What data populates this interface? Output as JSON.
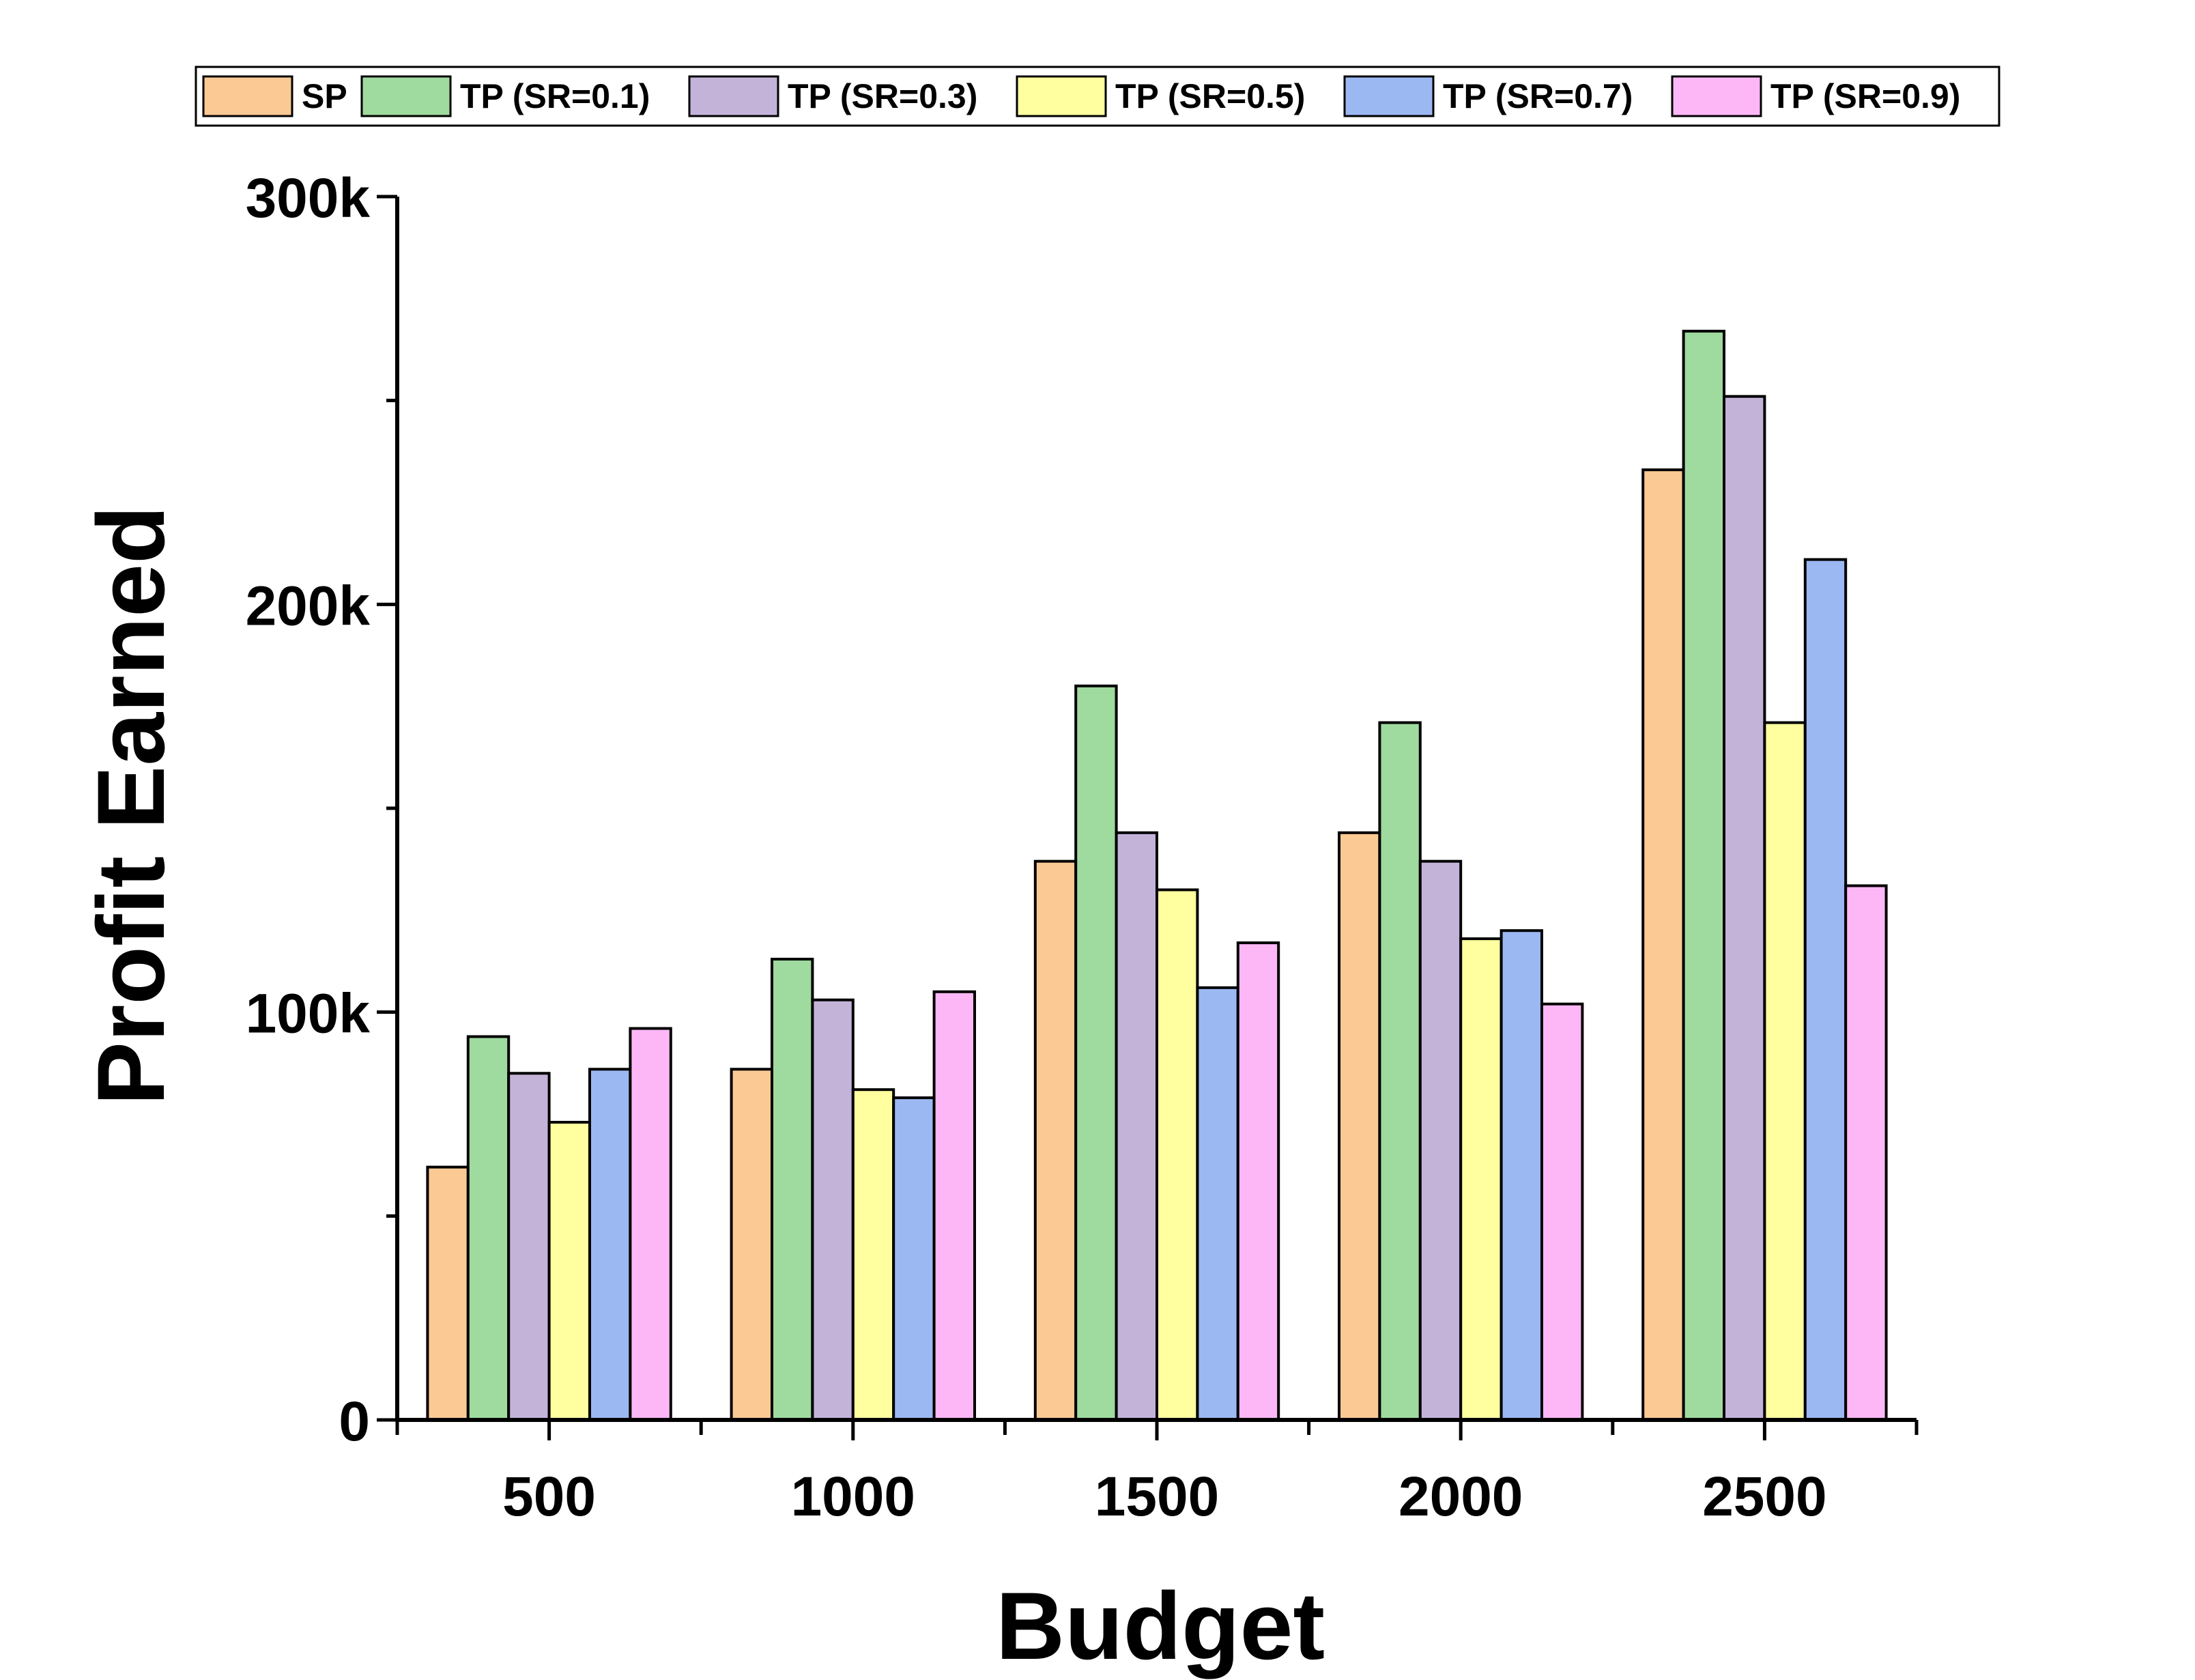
{
  "chart_data": {
    "type": "bar",
    "xlabel": "Budget",
    "ylabel": "Profit Earned",
    "categories": [
      "500",
      "1000",
      "1500",
      "2000",
      "2500"
    ],
    "ylim": [
      0,
      300000
    ],
    "y_ticks": [
      0,
      100000,
      200000,
      300000
    ],
    "y_tick_labels": [
      "0",
      "100k",
      "200k",
      "300k"
    ],
    "legend_position": "top",
    "grid": false,
    "series": [
      {
        "name": "SP",
        "color": "#FBC994",
        "values": [
          62000,
          86000,
          137000,
          144000,
          233000
        ]
      },
      {
        "name": "TP (SR=0.1)",
        "color": "#9FDA9F",
        "values": [
          94000,
          113000,
          180000,
          171000,
          267000
        ]
      },
      {
        "name": "TP (SR=0.3)",
        "color": "#C3B3D9",
        "values": [
          85000,
          103000,
          144000,
          137000,
          251000
        ]
      },
      {
        "name": "TP (SR=0.5)",
        "color": "#FFFFA0",
        "values": [
          73000,
          81000,
          130000,
          118000,
          171000
        ]
      },
      {
        "name": "TP (SR=0.7)",
        "color": "#9BB8F2",
        "values": [
          86000,
          79000,
          106000,
          120000,
          211000
        ]
      },
      {
        "name": "TP (SR=0.9)",
        "color": "#FDB7F6",
        "values": [
          96000,
          105000,
          117000,
          102000,
          131000
        ]
      }
    ]
  }
}
